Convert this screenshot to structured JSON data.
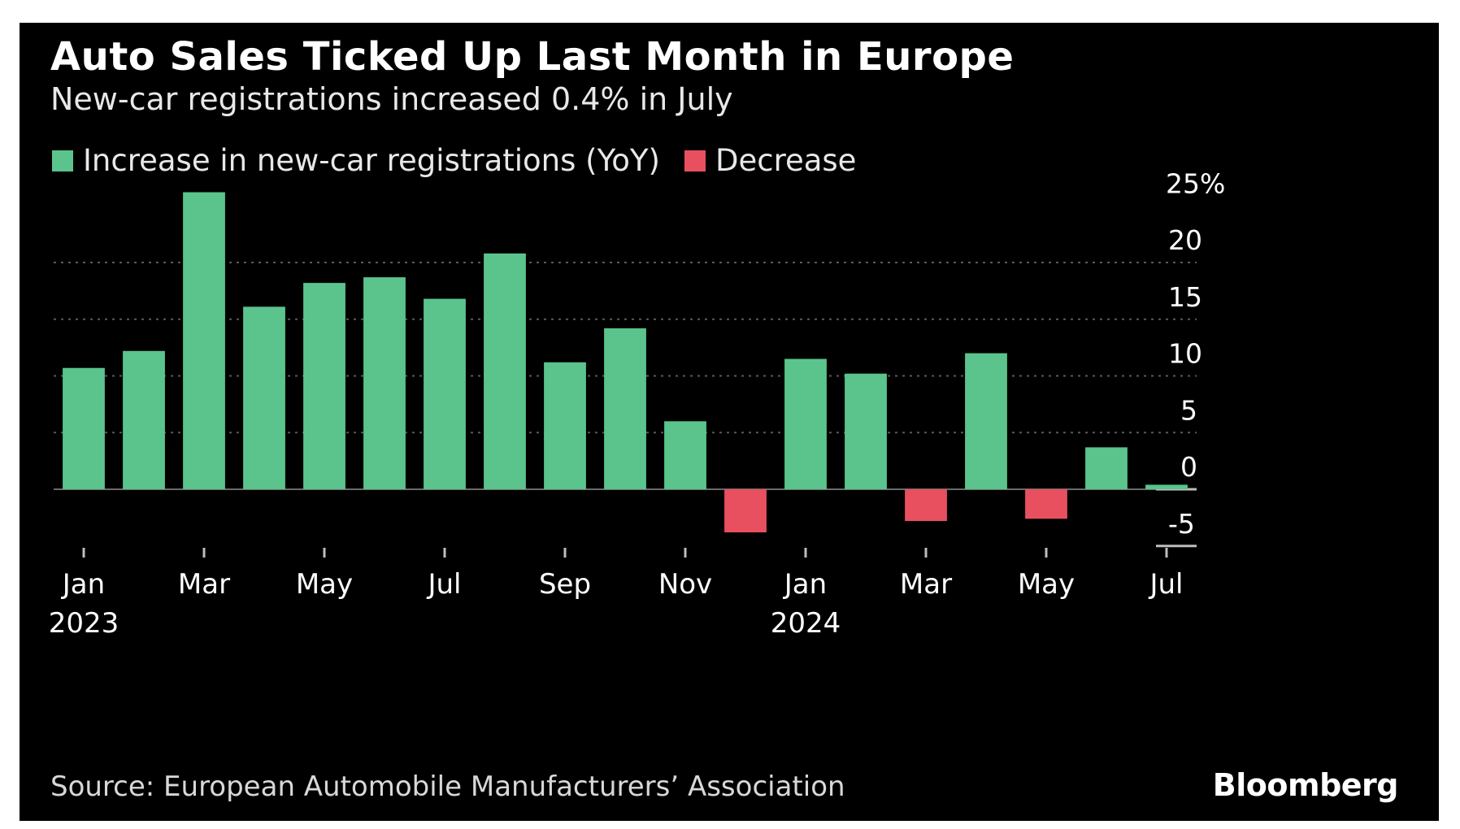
{
  "header": {
    "title": "Auto Sales Ticked Up Last Month in Europe",
    "subtitle": "New-car registrations increased 0.4% in July"
  },
  "legend": {
    "increase_label": "Increase in new-car registrations (YoY)",
    "decrease_label": "Decrease"
  },
  "footer": {
    "source": "Source: European Automobile Manufacturers’ Association",
    "brand": "Bloomberg"
  },
  "colors": {
    "background": "#000000",
    "increase": "#5ac48c",
    "decrease": "#e8505f",
    "grid": "#5a5a5a",
    "text": "#ffffff"
  },
  "chart_data": {
    "type": "bar",
    "categories": [
      "Jan 2023",
      "Feb 2023",
      "Mar 2023",
      "Apr 2023",
      "May 2023",
      "Jun 2023",
      "Jul 2023",
      "Aug 2023",
      "Sep 2023",
      "Oct 2023",
      "Nov 2023",
      "Dec 2023",
      "Jan 2024",
      "Feb 2024",
      "Mar 2024",
      "Apr 2024",
      "May 2024",
      "Jun 2024",
      "Jul 2024"
    ],
    "values": [
      10.7,
      12.2,
      26.2,
      16.1,
      18.2,
      18.7,
      16.8,
      20.8,
      11.2,
      14.2,
      6.0,
      -3.8,
      11.5,
      10.2,
      -2.8,
      12.0,
      -2.6,
      3.7,
      0.4
    ],
    "ylim": [
      -5,
      25
    ],
    "yticks": [
      25,
      20,
      15,
      10,
      5,
      0,
      -5
    ],
    "ytick_labels": [
      "25%",
      "20",
      "15",
      "10",
      "5",
      "0",
      "-5"
    ],
    "xticks": [
      {
        "index": 0,
        "label": "Jan",
        "sublabel": "2023"
      },
      {
        "index": 2,
        "label": "Mar",
        "sublabel": ""
      },
      {
        "index": 4,
        "label": "May",
        "sublabel": ""
      },
      {
        "index": 6,
        "label": "Jul",
        "sublabel": ""
      },
      {
        "index": 8,
        "label": "Sep",
        "sublabel": ""
      },
      {
        "index": 10,
        "label": "Nov",
        "sublabel": ""
      },
      {
        "index": 12,
        "label": "Jan",
        "sublabel": "2024"
      },
      {
        "index": 14,
        "label": "Mar",
        "sublabel": ""
      },
      {
        "index": 16,
        "label": "May",
        "sublabel": ""
      },
      {
        "index": 18,
        "label": "Jul",
        "sublabel": ""
      }
    ],
    "grid": true,
    "yaxis_position": "right",
    "legend_position": "top-left"
  }
}
